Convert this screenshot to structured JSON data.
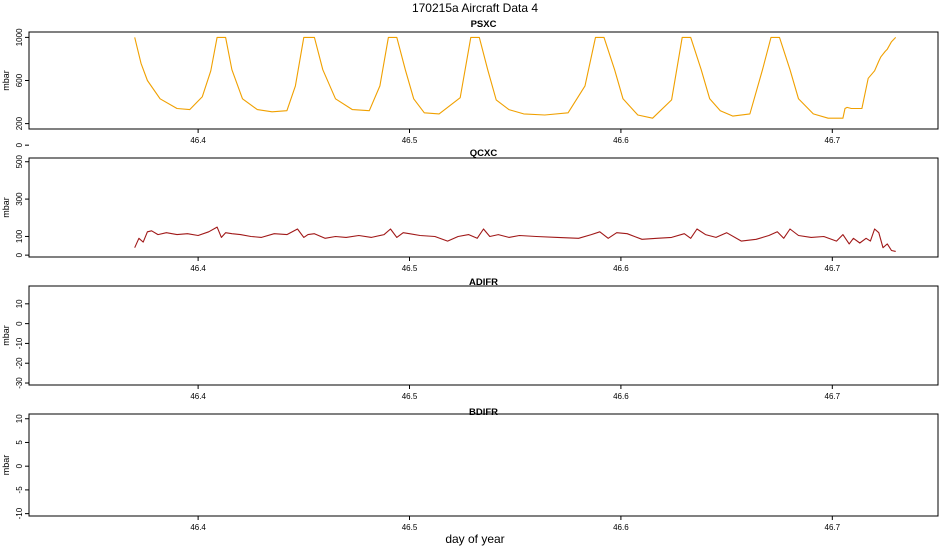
{
  "figure": {
    "title": "170215a   Aircraft Data 4",
    "xlabel": "day of year"
  },
  "chart_data": [
    {
      "type": "line",
      "title": "PSXC",
      "ylabel": "mbar",
      "color": "#f0a000",
      "xlim": [
        46.32,
        46.75
      ],
      "ylim": [
        150,
        1050
      ],
      "xticks": [
        46.4,
        46.5,
        46.6,
        46.7
      ],
      "yticks": [
        0,
        200,
        600,
        1000
      ],
      "x": [
        46.37,
        46.373,
        46.376,
        46.382,
        46.39,
        46.396,
        46.402,
        46.406,
        46.409,
        46.413,
        46.416,
        46.421,
        46.428,
        46.435,
        46.442,
        46.446,
        46.45,
        46.455,
        46.459,
        46.465,
        46.473,
        46.481,
        46.486,
        46.49,
        46.494,
        46.498,
        46.502,
        46.507,
        46.514,
        46.524,
        46.529,
        46.533,
        46.537,
        46.541,
        46.547,
        46.554,
        46.564,
        46.575,
        46.583,
        46.588,
        46.592,
        46.597,
        46.601,
        46.608,
        46.615,
        46.624,
        46.629,
        46.633,
        46.638,
        46.642,
        46.647,
        46.653,
        46.661,
        46.667,
        46.671,
        46.675,
        46.68,
        46.684,
        46.691,
        46.698,
        46.705,
        46.706,
        46.707,
        46.709,
        46.714,
        46.717,
        46.72,
        46.722,
        46.723,
        46.725,
        46.726,
        46.728,
        46.73
      ],
      "y": [
        1000,
        760,
        600,
        430,
        340,
        330,
        450,
        690,
        1000,
        1000,
        700,
        430,
        330,
        310,
        320,
        550,
        1000,
        1000,
        700,
        430,
        330,
        320,
        550,
        1000,
        1000,
        700,
        430,
        300,
        290,
        440,
        1000,
        1000,
        700,
        420,
        330,
        290,
        280,
        300,
        550,
        1000,
        1000,
        700,
        430,
        280,
        250,
        420,
        1000,
        1000,
        700,
        430,
        320,
        270,
        290,
        700,
        1000,
        1000,
        700,
        430,
        290,
        250,
        250,
        340,
        350,
        340,
        340,
        620,
        690,
        780,
        820,
        870,
        890,
        960,
        1000
      ]
    },
    {
      "type": "line",
      "title": "QCXC",
      "ylabel": "mbar",
      "color": "#a01818",
      "xlim": [
        46.32,
        46.75
      ],
      "ylim": [
        -10,
        520
      ],
      "xticks": [
        46.4,
        46.5,
        46.6,
        46.7
      ],
      "yticks": [
        0,
        100,
        300,
        500
      ],
      "x": [
        46.37,
        46.372,
        46.374,
        46.376,
        46.378,
        46.381,
        46.385,
        46.39,
        46.395,
        46.4,
        46.405,
        46.409,
        46.411,
        46.413,
        46.416,
        46.42,
        46.425,
        46.43,
        46.436,
        46.442,
        46.447,
        46.45,
        46.452,
        46.455,
        46.46,
        46.465,
        46.47,
        46.476,
        46.482,
        46.488,
        46.491,
        46.494,
        46.497,
        46.5,
        46.505,
        46.512,
        46.518,
        46.523,
        46.528,
        46.532,
        46.535,
        46.538,
        46.542,
        46.547,
        46.552,
        46.56,
        46.57,
        46.58,
        46.586,
        46.59,
        46.594,
        46.598,
        46.603,
        46.61,
        46.617,
        46.624,
        46.63,
        46.633,
        46.636,
        46.64,
        46.645,
        46.65,
        46.657,
        46.664,
        46.67,
        46.674,
        46.677,
        46.68,
        46.684,
        46.69,
        46.696,
        46.702,
        46.705,
        46.708,
        46.71,
        46.713,
        46.716,
        46.718,
        46.72,
        46.722,
        46.724,
        46.726,
        46.728,
        46.73
      ],
      "y": [
        40,
        90,
        70,
        125,
        130,
        110,
        120,
        110,
        115,
        105,
        125,
        150,
        95,
        120,
        115,
        110,
        100,
        95,
        115,
        110,
        140,
        95,
        110,
        115,
        90,
        100,
        95,
        105,
        95,
        110,
        140,
        95,
        120,
        115,
        105,
        100,
        75,
        100,
        110,
        90,
        140,
        100,
        110,
        95,
        105,
        100,
        95,
        90,
        110,
        125,
        90,
        120,
        115,
        85,
        90,
        95,
        115,
        90,
        140,
        110,
        95,
        120,
        75,
        85,
        105,
        125,
        90,
        140,
        105,
        95,
        100,
        75,
        110,
        60,
        90,
        65,
        90,
        75,
        140,
        120,
        40,
        60,
        25,
        20
      ]
    },
    {
      "type": "line",
      "title": "ADIFR",
      "ylabel": "mbar",
      "color": "#000000",
      "xlim": [
        46.32,
        46.75
      ],
      "ylim": [
        -31,
        19
      ],
      "xticks": [
        46.4,
        46.5,
        46.6,
        46.7
      ],
      "yticks": [
        -30,
        -20,
        -10,
        0,
        10
      ],
      "x": [],
      "y": []
    },
    {
      "type": "line",
      "title": "BDIFR",
      "ylabel": "mbar",
      "color": "#000000",
      "xlim": [
        46.32,
        46.75
      ],
      "ylim": [
        -10.5,
        11
      ],
      "xticks": [
        46.4,
        46.5,
        46.6,
        46.7
      ],
      "yticks": [
        -10,
        -5,
        0,
        5,
        10
      ],
      "x": [],
      "y": []
    }
  ]
}
